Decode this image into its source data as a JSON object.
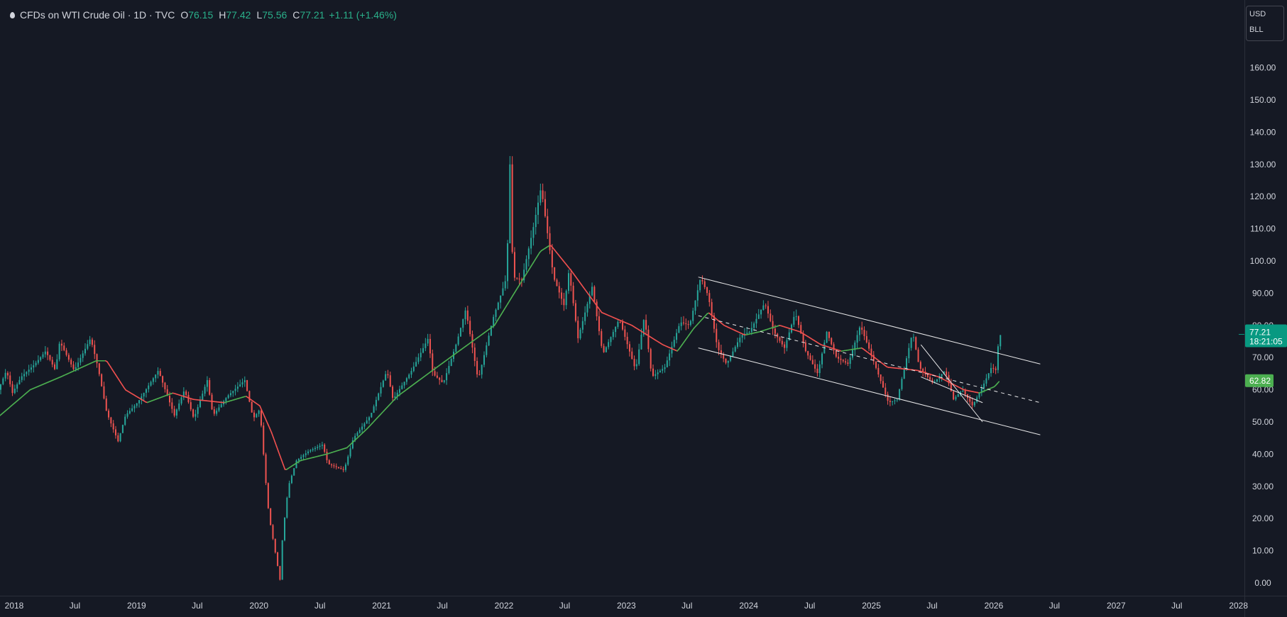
{
  "legend": {
    "symbol": "CFDs on WTI Crude Oil · 1D · TVC",
    "open_label": "O",
    "open": "76.15",
    "high_label": "H",
    "high": "77.42",
    "low_label": "L",
    "low": "75.56",
    "close_label": "C",
    "close": "77.21",
    "change": "+1.11 (+1.46%)"
  },
  "unit_selector": {
    "currency": "USD",
    "unit": "BLL"
  },
  "colors": {
    "background": "#151924",
    "up": "#26a69a",
    "down": "#ef5350",
    "ma_rising": "#4caf50",
    "ma_falling": "#f0504f",
    "price_badge": "#089981",
    "ma_badge": "#4caf50"
  },
  "chart_data": {
    "type": "candlestick",
    "ylim": [
      0,
      170
    ],
    "y_ticks": [
      "0.00",
      "10.00",
      "20.00",
      "30.00",
      "40.00",
      "50.00",
      "60.00",
      "70.00",
      "80.00",
      "90.00",
      "100.00",
      "110.00",
      "120.00",
      "130.00",
      "140.00",
      "150.00",
      "160.00"
    ],
    "x_ticks": [
      "2018",
      "Jul",
      "2019",
      "Jul",
      "2020",
      "Jul",
      "2021",
      "Jul",
      "2022",
      "Jul",
      "2023",
      "Jul",
      "2024",
      "Jul",
      "2025",
      "Jul",
      "2026",
      "Jul",
      "2027",
      "Jul",
      "2028"
    ],
    "x_range": [
      "2018-01-01",
      "2028-03-01"
    ],
    "grid": false,
    "price_path": [
      [
        "2018-01-01",
        60
      ],
      [
        "2018-01-25",
        66
      ],
      [
        "2018-02-12",
        59
      ],
      [
        "2018-03-10",
        64
      ],
      [
        "2018-04-20",
        68
      ],
      [
        "2018-05-22",
        72
      ],
      [
        "2018-06-20",
        66
      ],
      [
        "2018-07-03",
        75
      ],
      [
        "2018-08-15",
        66
      ],
      [
        "2018-10-03",
        76
      ],
      [
        "2018-10-25",
        67
      ],
      [
        "2018-11-20",
        53
      ],
      [
        "2018-12-24",
        44
      ],
      [
        "2019-01-15",
        52
      ],
      [
        "2019-02-20",
        56
      ],
      [
        "2019-04-23",
        66
      ],
      [
        "2019-06-10",
        52
      ],
      [
        "2019-07-10",
        60
      ],
      [
        "2019-08-07",
        51
      ],
      [
        "2019-09-16",
        63
      ],
      [
        "2019-10-03",
        52
      ],
      [
        "2019-11-15",
        58
      ],
      [
        "2020-01-06",
        63
      ],
      [
        "2020-01-31",
        51
      ],
      [
        "2020-02-20",
        54
      ],
      [
        "2020-03-09",
        31
      ],
      [
        "2020-03-18",
        21
      ],
      [
        "2020-04-20",
        1
      ],
      [
        "2020-04-28",
        15
      ],
      [
        "2020-05-15",
        30
      ],
      [
        "2020-06-08",
        38
      ],
      [
        "2020-07-15",
        41
      ],
      [
        "2020-08-25",
        43
      ],
      [
        "2020-09-10",
        37
      ],
      [
        "2020-10-28",
        35
      ],
      [
        "2020-11-25",
        45
      ],
      [
        "2021-01-15",
        52
      ],
      [
        "2021-03-05",
        66
      ],
      [
        "2021-03-23",
        57
      ],
      [
        "2021-05-18",
        66
      ],
      [
        "2021-07-06",
        76
      ],
      [
        "2021-07-20",
        65
      ],
      [
        "2021-08-20",
        62
      ],
      [
        "2021-09-30",
        75
      ],
      [
        "2021-10-26",
        85
      ],
      [
        "2021-12-02",
        63
      ],
      [
        "2022-01-15",
        82
      ],
      [
        "2022-02-25",
        95
      ],
      [
        "2022-03-07",
        130
      ],
      [
        "2022-03-16",
        95
      ],
      [
        "2022-04-11",
        94
      ],
      [
        "2022-05-15",
        110
      ],
      [
        "2022-06-08",
        123
      ],
      [
        "2022-07-15",
        95
      ],
      [
        "2022-08-16",
        86
      ],
      [
        "2022-08-30",
        97
      ],
      [
        "2022-09-26",
        76
      ],
      [
        "2022-11-07",
        92
      ],
      [
        "2022-12-09",
        71
      ],
      [
        "2023-01-27",
        82
      ],
      [
        "2023-03-17",
        66
      ],
      [
        "2023-04-12",
        83
      ],
      [
        "2023-05-04",
        64
      ],
      [
        "2023-06-12",
        67
      ],
      [
        "2023-07-28",
        81
      ],
      [
        "2023-08-25",
        80
      ],
      [
        "2023-09-27",
        95
      ],
      [
        "2023-10-20",
        89
      ],
      [
        "2023-11-16",
        73
      ],
      [
        "2023-12-13",
        68
      ],
      [
        "2024-01-26",
        77
      ],
      [
        "2024-02-20",
        78
      ],
      [
        "2024-04-05",
        87
      ],
      [
        "2024-05-02",
        78
      ],
      [
        "2024-06-03",
        73
      ],
      [
        "2024-07-05",
        84
      ],
      [
        "2024-08-05",
        72
      ],
      [
        "2024-09-10",
        65
      ],
      [
        "2024-10-07",
        78
      ],
      [
        "2024-11-05",
        70
      ],
      [
        "2024-12-10",
        68
      ],
      [
        "2025-01-15",
        80
      ],
      [
        "2025-02-20",
        70
      ],
      [
        "2025-04-09",
        56
      ],
      [
        "2025-05-05",
        57
      ],
      [
        "2025-06-20",
        78
      ],
      [
        "2025-07-10",
        67
      ],
      [
        "2025-08-20",
        62
      ],
      [
        "2025-09-25",
        66
      ],
      [
        "2025-10-20",
        57
      ],
      [
        "2025-11-15",
        60
      ],
      [
        "2025-12-16",
        55
      ],
      [
        "2026-01-15",
        61
      ],
      [
        "2026-02-10",
        67
      ],
      [
        "2026-02-25",
        66
      ],
      [
        "2026-03-03",
        75
      ],
      [
        "2026-03-04",
        77
      ]
    ],
    "series": [
      {
        "values": [
          [
            "2018-01-01",
            52
          ],
          [
            "2018-04-01",
            60
          ],
          [
            "2018-07-01",
            64
          ],
          [
            "2018-10-15",
            69
          ],
          [
            "2018-11-15",
            69
          ],
          [
            "2019-01-10",
            60
          ],
          [
            "2019-03-15",
            56
          ],
          [
            "2019-06-01",
            59
          ],
          [
            "2019-08-01",
            57
          ],
          [
            "2019-11-01",
            56
          ],
          [
            "2020-01-05",
            58
          ],
          [
            "2020-02-15",
            55
          ],
          [
            "2020-03-20",
            47
          ],
          [
            "2020-05-01",
            35
          ],
          [
            "2020-06-15",
            38
          ],
          [
            "2020-09-01",
            40
          ],
          [
            "2020-11-01",
            42
          ],
          [
            "2021-01-01",
            48
          ],
          [
            "2021-04-01",
            58
          ],
          [
            "2021-07-01",
            65
          ],
          [
            "2021-10-01",
            72
          ],
          [
            "2022-01-15",
            80
          ],
          [
            "2022-03-15",
            90
          ],
          [
            "2022-06-01",
            103
          ],
          [
            "2022-07-01",
            105
          ],
          [
            "2022-09-01",
            97
          ],
          [
            "2022-12-01",
            84
          ],
          [
            "2023-03-01",
            80
          ],
          [
            "2023-06-01",
            74
          ],
          [
            "2023-07-15",
            72
          ],
          [
            "2023-09-01",
            79
          ],
          [
            "2023-10-15",
            84
          ],
          [
            "2023-12-01",
            80
          ],
          [
            "2024-02-01",
            77
          ],
          [
            "2024-03-15",
            78
          ],
          [
            "2024-05-15",
            80
          ],
          [
            "2024-07-15",
            78
          ],
          [
            "2024-09-15",
            74
          ],
          [
            "2024-11-15",
            72
          ],
          [
            "2025-01-15",
            73
          ],
          [
            "2025-04-01",
            67
          ],
          [
            "2025-07-01",
            66
          ],
          [
            "2025-09-01",
            64
          ],
          [
            "2025-11-15",
            60
          ],
          [
            "2026-01-01",
            59
          ],
          [
            "2026-02-15",
            61
          ],
          [
            "2026-03-04",
            63
          ]
        ]
      }
    ]
  },
  "price_label": {
    "value": "77.21",
    "countdown": "18:21:05"
  },
  "ma_label": {
    "value": "62.82"
  }
}
